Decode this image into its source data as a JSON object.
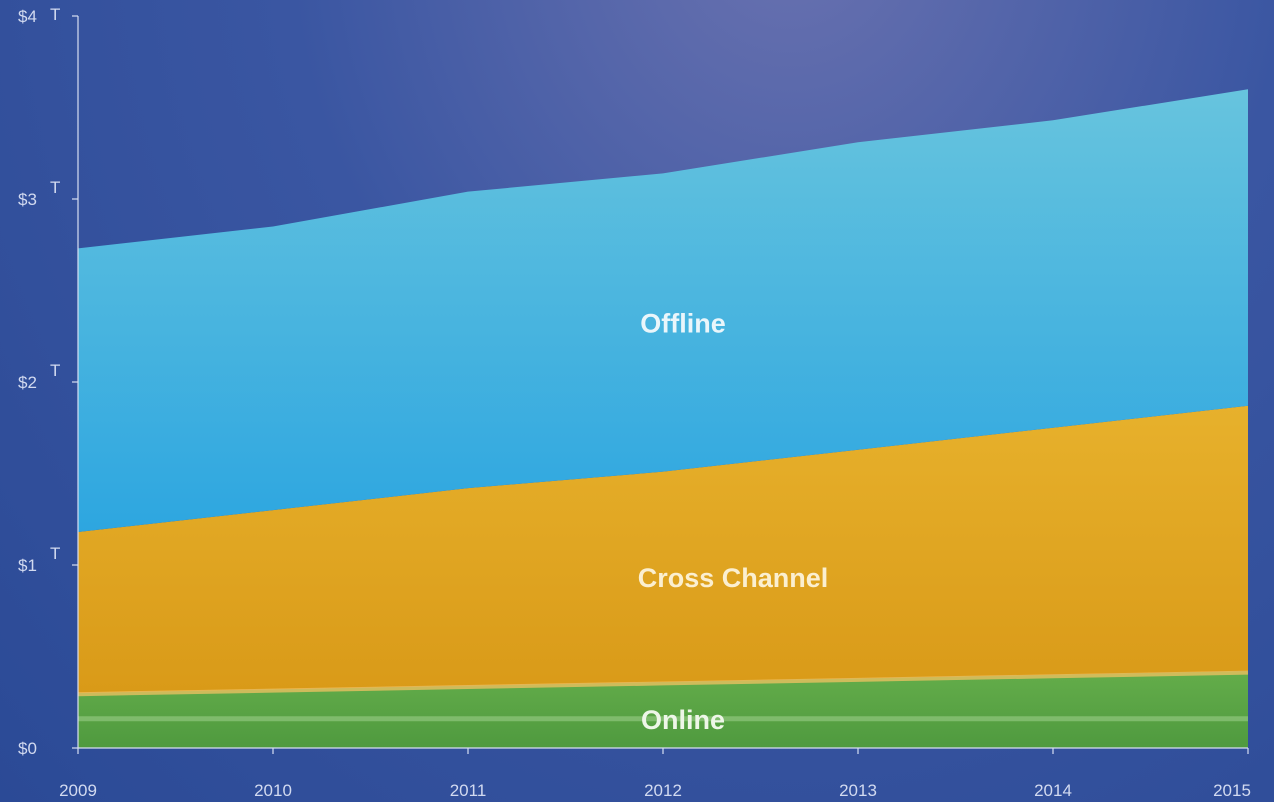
{
  "chart_data": {
    "type": "area",
    "stacked": true,
    "x": [
      2009,
      2010,
      2011,
      2012,
      2013,
      2014,
      2015
    ],
    "xtick_labels": [
      "2009",
      "2010",
      "2011",
      "2012",
      "2013",
      "2014",
      "2015"
    ],
    "ytick_labels": [
      "$0",
      "$1",
      "$2",
      "$3",
      "$4"
    ],
    "yticks": [
      0,
      1,
      2,
      3,
      4
    ],
    "ylim": [
      0,
      4
    ],
    "xlim": [
      2009,
      2015
    ],
    "title": "",
    "xlabel": "",
    "ylabel": "",
    "unit_marker": "T",
    "series": [
      {
        "name": "Online",
        "values": [
          0.3,
          0.32,
          0.34,
          0.36,
          0.38,
          0.4,
          0.42
        ],
        "color": "#5aa847"
      },
      {
        "name": "Cross Channel",
        "values": [
          0.88,
          0.98,
          1.08,
          1.15,
          1.25,
          1.35,
          1.45
        ],
        "color": "#e3a826"
      },
      {
        "name": "Offline",
        "values": [
          1.55,
          1.55,
          1.62,
          1.63,
          1.68,
          1.68,
          1.73
        ],
        "color": "#4fb6de"
      }
    ],
    "label_positions": "inside-areas",
    "grid": false
  }
}
